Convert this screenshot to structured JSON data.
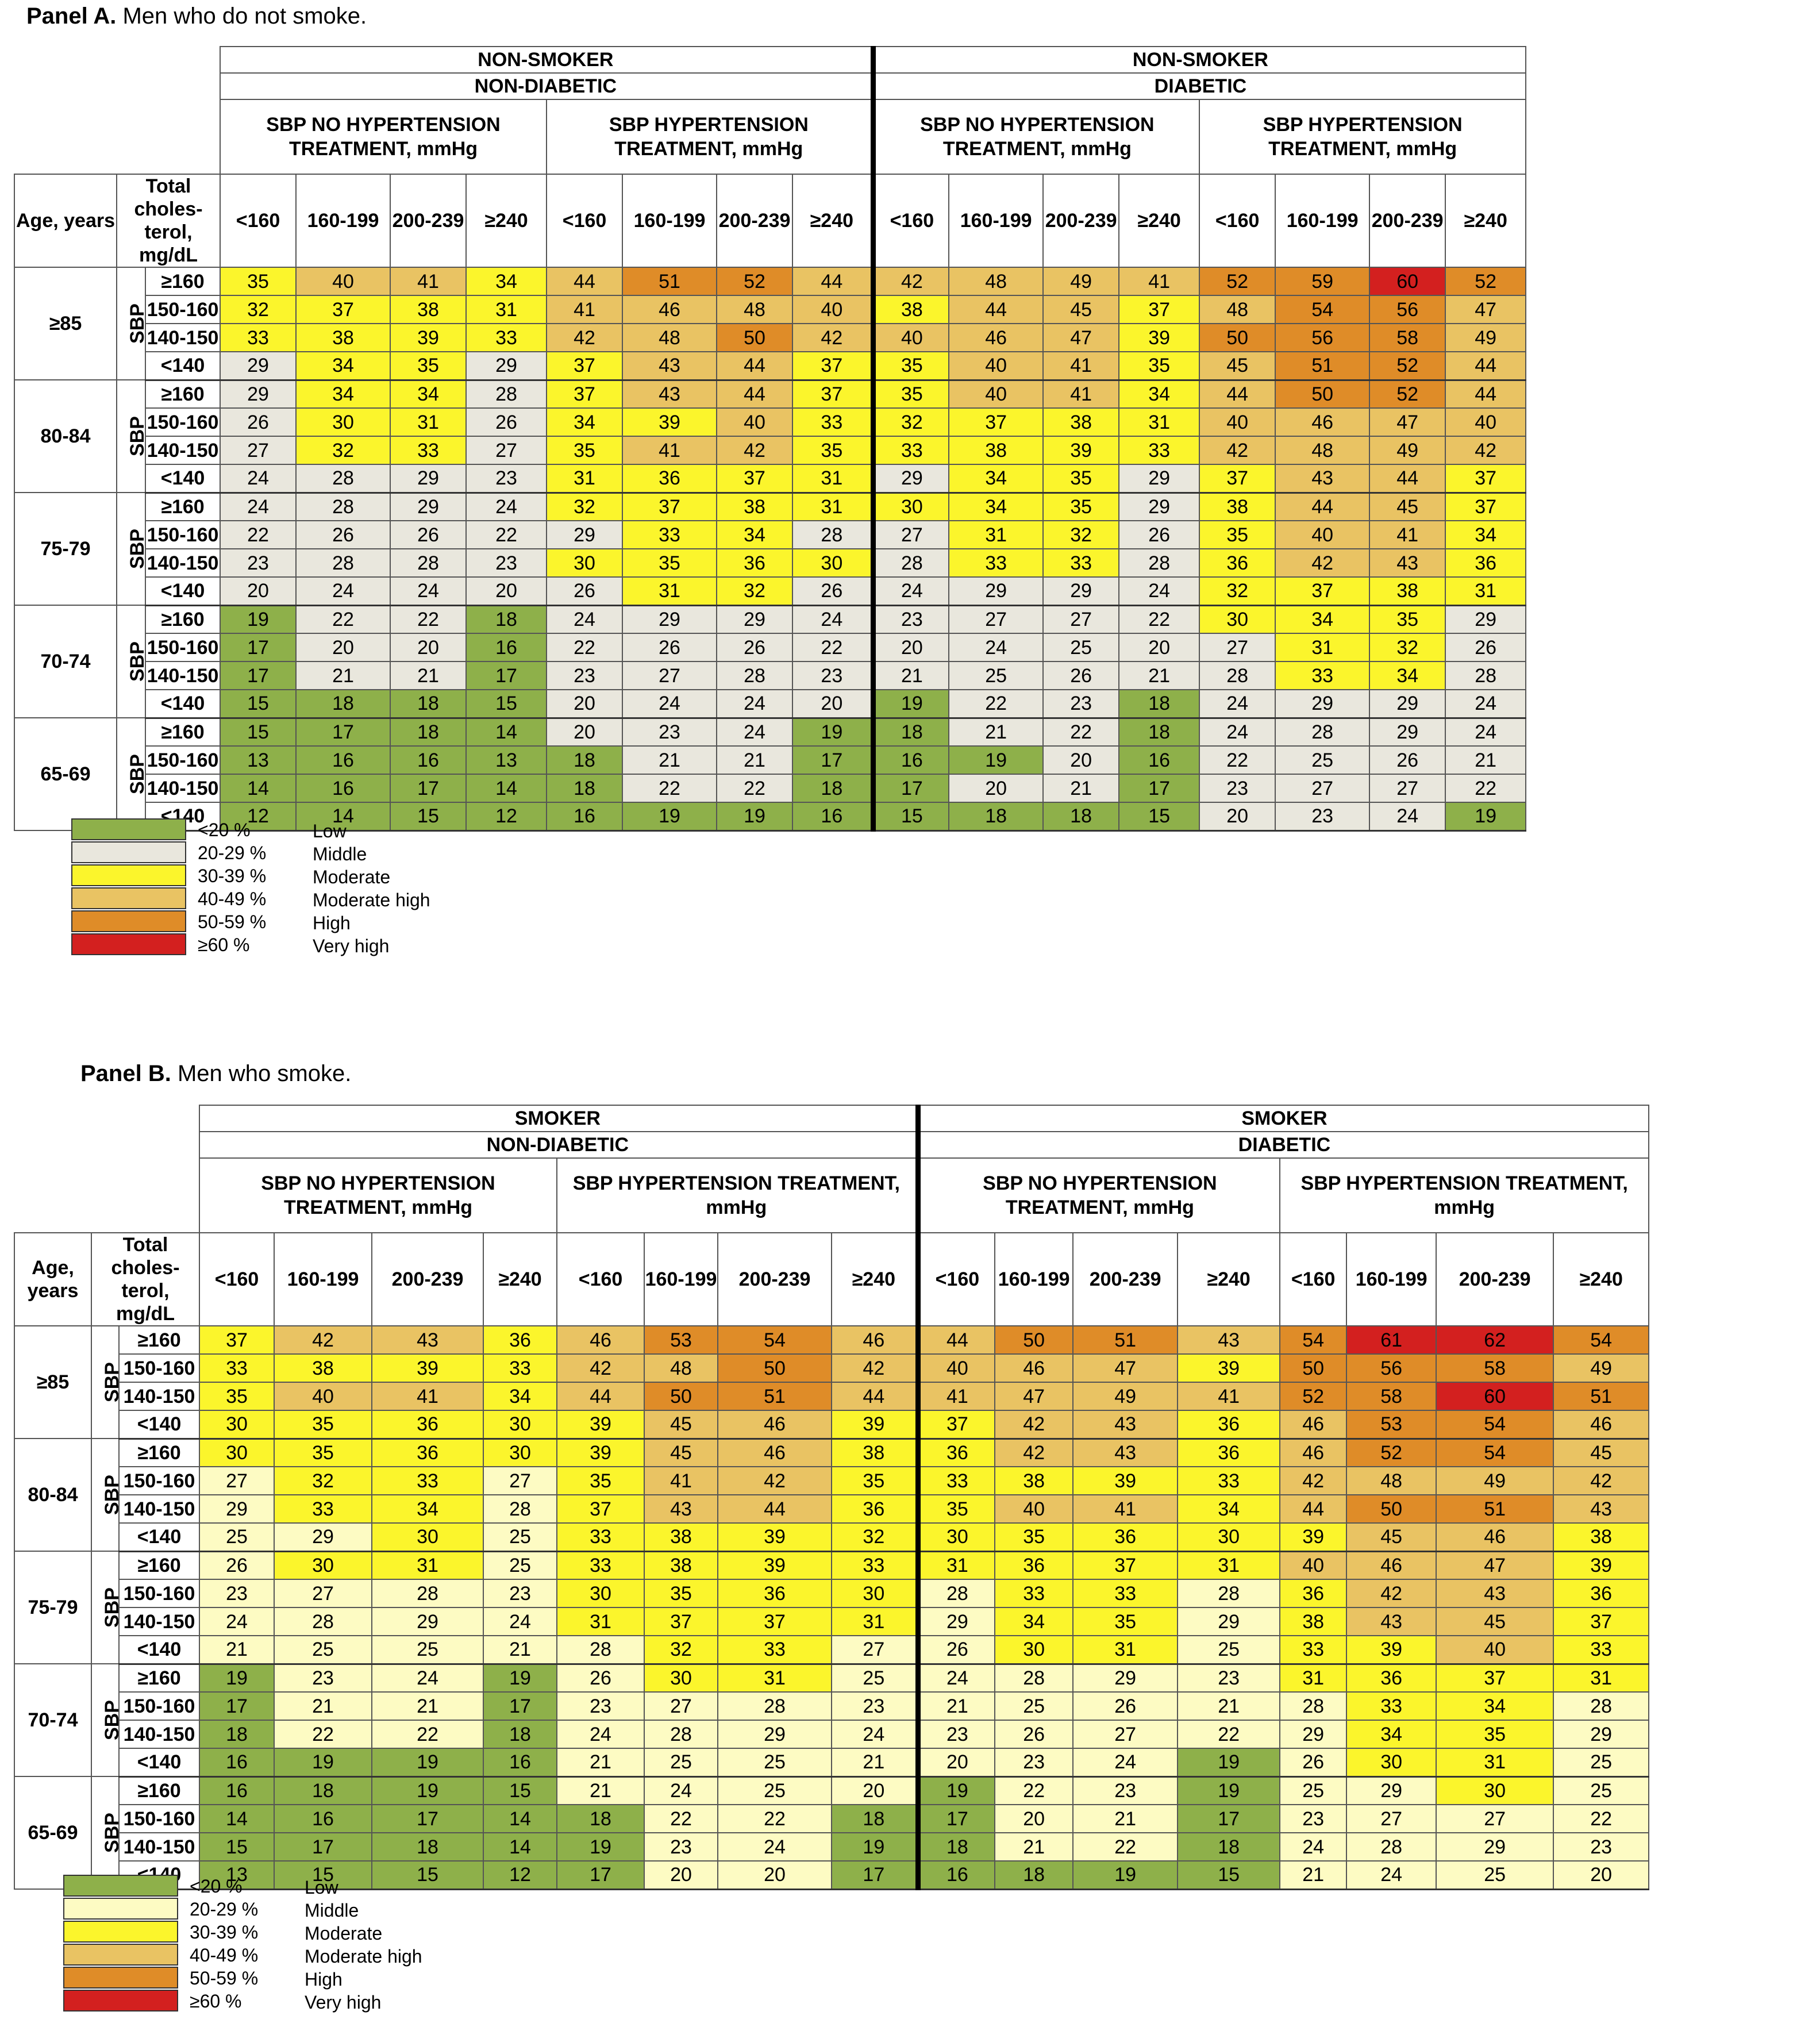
{
  "panels": [
    {
      "label": "Panel A.",
      "subtitle": "Men who do not smoke.",
      "group_left": {
        "status": "NON-SMOKER",
        "diabetes": "NON-DIABETIC"
      },
      "group_right": {
        "status": "NON-SMOKER",
        "diabetes": "DIABETIC"
      },
      "palette": "A"
    },
    {
      "label": "Panel B.",
      "subtitle": "Men who smoke.",
      "group_left": {
        "status": "SMOKER",
        "diabetes": "NON-DIABETIC"
      },
      "group_right": {
        "status": "SMOKER",
        "diabetes": "DIABETIC"
      },
      "palette": "B"
    }
  ],
  "treatment_labels": [
    "SBP NO HYPERTENSION TREATMENT, mmHg",
    "SBP HYPERTENSION TREATMENT, mmHg"
  ],
  "age_header": "Age, years",
  "chol_header": "Total choles-terol, mg/dL",
  "cholesterol_categories": [
    "<160",
    "160-199",
    "200-239",
    "≥240"
  ],
  "sbp_label": "SBP",
  "sbp_categories": [
    "≥160",
    "150-160",
    "140-150",
    "<140"
  ],
  "age_groups": [
    "≥85",
    "80-84",
    "75-79",
    "70-74",
    "65-69"
  ],
  "legend": {
    "ranges": [
      "<20 %",
      "20-29 %",
      "30-39 %",
      "40-49 %",
      "50-59 %",
      "≥60 %"
    ],
    "levels": [
      "Low",
      "Middle",
      "Moderate",
      "Moderate high",
      "High",
      "Very high"
    ]
  },
  "colors": {
    "A": [
      "#8eb04a",
      "#e9e7dd",
      "#fbf52c",
      "#e9c363",
      "#df8c28",
      "#d3201f"
    ],
    "B": [
      "#8eb04a",
      "#fdfbc3",
      "#fbf52c",
      "#e9c363",
      "#df8c28",
      "#d3201f"
    ]
  },
  "chart_data": [
    {
      "type": "table",
      "title": "Panel A. Men who do not smoke.",
      "rows": [
        [
          35,
          40,
          41,
          34,
          44,
          51,
          52,
          44,
          42,
          48,
          49,
          41,
          52,
          59,
          60,
          52
        ],
        [
          32,
          37,
          38,
          31,
          41,
          46,
          48,
          40,
          38,
          44,
          45,
          37,
          48,
          54,
          56,
          47
        ],
        [
          33,
          38,
          39,
          33,
          42,
          48,
          50,
          42,
          40,
          46,
          47,
          39,
          50,
          56,
          58,
          49
        ],
        [
          29,
          34,
          35,
          29,
          37,
          43,
          44,
          37,
          35,
          40,
          41,
          35,
          45,
          51,
          52,
          44
        ],
        [
          29,
          34,
          34,
          28,
          37,
          43,
          44,
          37,
          35,
          40,
          41,
          34,
          44,
          50,
          52,
          44
        ],
        [
          26,
          30,
          31,
          26,
          34,
          39,
          40,
          33,
          32,
          37,
          38,
          31,
          40,
          46,
          47,
          40
        ],
        [
          27,
          32,
          33,
          27,
          35,
          41,
          42,
          35,
          33,
          38,
          39,
          33,
          42,
          48,
          49,
          42
        ],
        [
          24,
          28,
          29,
          23,
          31,
          36,
          37,
          31,
          29,
          34,
          35,
          29,
          37,
          43,
          44,
          37
        ],
        [
          24,
          28,
          29,
          24,
          32,
          37,
          38,
          31,
          30,
          34,
          35,
          29,
          38,
          44,
          45,
          37
        ],
        [
          22,
          26,
          26,
          22,
          29,
          33,
          34,
          28,
          27,
          31,
          32,
          26,
          35,
          40,
          41,
          34
        ],
        [
          23,
          28,
          28,
          23,
          30,
          35,
          36,
          30,
          28,
          33,
          33,
          28,
          36,
          42,
          43,
          36
        ],
        [
          20,
          24,
          24,
          20,
          26,
          31,
          32,
          26,
          24,
          29,
          29,
          24,
          32,
          37,
          38,
          31
        ],
        [
          19,
          22,
          22,
          18,
          24,
          29,
          29,
          24,
          23,
          27,
          27,
          22,
          30,
          34,
          35,
          29
        ],
        [
          17,
          20,
          20,
          16,
          22,
          26,
          26,
          22,
          20,
          24,
          25,
          20,
          27,
          31,
          32,
          26
        ],
        [
          17,
          21,
          21,
          17,
          23,
          27,
          28,
          23,
          21,
          25,
          26,
          21,
          28,
          33,
          34,
          28
        ],
        [
          15,
          18,
          18,
          15,
          20,
          24,
          24,
          20,
          19,
          22,
          23,
          18,
          24,
          29,
          29,
          24
        ],
        [
          15,
          17,
          18,
          14,
          20,
          23,
          24,
          19,
          18,
          21,
          22,
          18,
          24,
          28,
          29,
          24
        ],
        [
          13,
          16,
          16,
          13,
          18,
          21,
          21,
          17,
          16,
          19,
          20,
          16,
          22,
          25,
          26,
          21
        ],
        [
          14,
          16,
          17,
          14,
          18,
          22,
          22,
          18,
          17,
          20,
          21,
          17,
          23,
          27,
          27,
          22
        ],
        [
          12,
          14,
          15,
          12,
          16,
          19,
          19,
          16,
          15,
          18,
          18,
          15,
          20,
          23,
          24,
          19
        ]
      ]
    },
    {
      "type": "table",
      "title": "Panel B. Men who smoke.",
      "rows": [
        [
          37,
          42,
          43,
          36,
          46,
          53,
          54,
          46,
          44,
          50,
          51,
          43,
          54,
          61,
          62,
          54
        ],
        [
          33,
          38,
          39,
          33,
          42,
          48,
          50,
          42,
          40,
          46,
          47,
          39,
          50,
          56,
          58,
          49
        ],
        [
          35,
          40,
          41,
          34,
          44,
          50,
          51,
          44,
          41,
          47,
          49,
          41,
          52,
          58,
          60,
          51
        ],
        [
          30,
          35,
          36,
          30,
          39,
          45,
          46,
          39,
          37,
          42,
          43,
          36,
          46,
          53,
          54,
          46
        ],
        [
          30,
          35,
          36,
          30,
          39,
          45,
          46,
          38,
          36,
          42,
          43,
          36,
          46,
          52,
          54,
          45
        ],
        [
          27,
          32,
          33,
          27,
          35,
          41,
          42,
          35,
          33,
          38,
          39,
          33,
          42,
          48,
          49,
          42
        ],
        [
          29,
          33,
          34,
          28,
          37,
          43,
          44,
          36,
          35,
          40,
          41,
          34,
          44,
          50,
          51,
          43
        ],
        [
          25,
          29,
          30,
          25,
          33,
          38,
          39,
          32,
          30,
          35,
          36,
          30,
          39,
          45,
          46,
          38
        ],
        [
          26,
          30,
          31,
          25,
          33,
          38,
          39,
          33,
          31,
          36,
          37,
          31,
          40,
          46,
          47,
          39
        ],
        [
          23,
          27,
          28,
          23,
          30,
          35,
          36,
          30,
          28,
          33,
          33,
          28,
          36,
          42,
          43,
          36
        ],
        [
          24,
          28,
          29,
          24,
          31,
          37,
          37,
          31,
          29,
          34,
          35,
          29,
          38,
          43,
          45,
          37
        ],
        [
          21,
          25,
          25,
          21,
          28,
          32,
          33,
          27,
          26,
          30,
          31,
          25,
          33,
          39,
          40,
          33
        ],
        [
          19,
          23,
          24,
          19,
          26,
          30,
          31,
          25,
          24,
          28,
          29,
          23,
          31,
          36,
          37,
          31
        ],
        [
          17,
          21,
          21,
          17,
          23,
          27,
          28,
          23,
          21,
          25,
          26,
          21,
          28,
          33,
          34,
          28
        ],
        [
          18,
          22,
          22,
          18,
          24,
          28,
          29,
          24,
          23,
          26,
          27,
          22,
          29,
          34,
          35,
          29
        ],
        [
          16,
          19,
          19,
          16,
          21,
          25,
          25,
          21,
          20,
          23,
          24,
          19,
          26,
          30,
          31,
          25
        ],
        [
          16,
          18,
          19,
          15,
          21,
          24,
          25,
          20,
          19,
          22,
          23,
          19,
          25,
          29,
          30,
          25
        ],
        [
          14,
          16,
          17,
          14,
          18,
          22,
          22,
          18,
          17,
          20,
          21,
          17,
          23,
          27,
          27,
          22
        ],
        [
          15,
          17,
          18,
          14,
          19,
          23,
          24,
          19,
          18,
          21,
          22,
          18,
          24,
          28,
          29,
          23
        ],
        [
          13,
          15,
          15,
          12,
          17,
          20,
          20,
          17,
          16,
          18,
          19,
          15,
          21,
          24,
          25,
          20
        ]
      ]
    }
  ]
}
